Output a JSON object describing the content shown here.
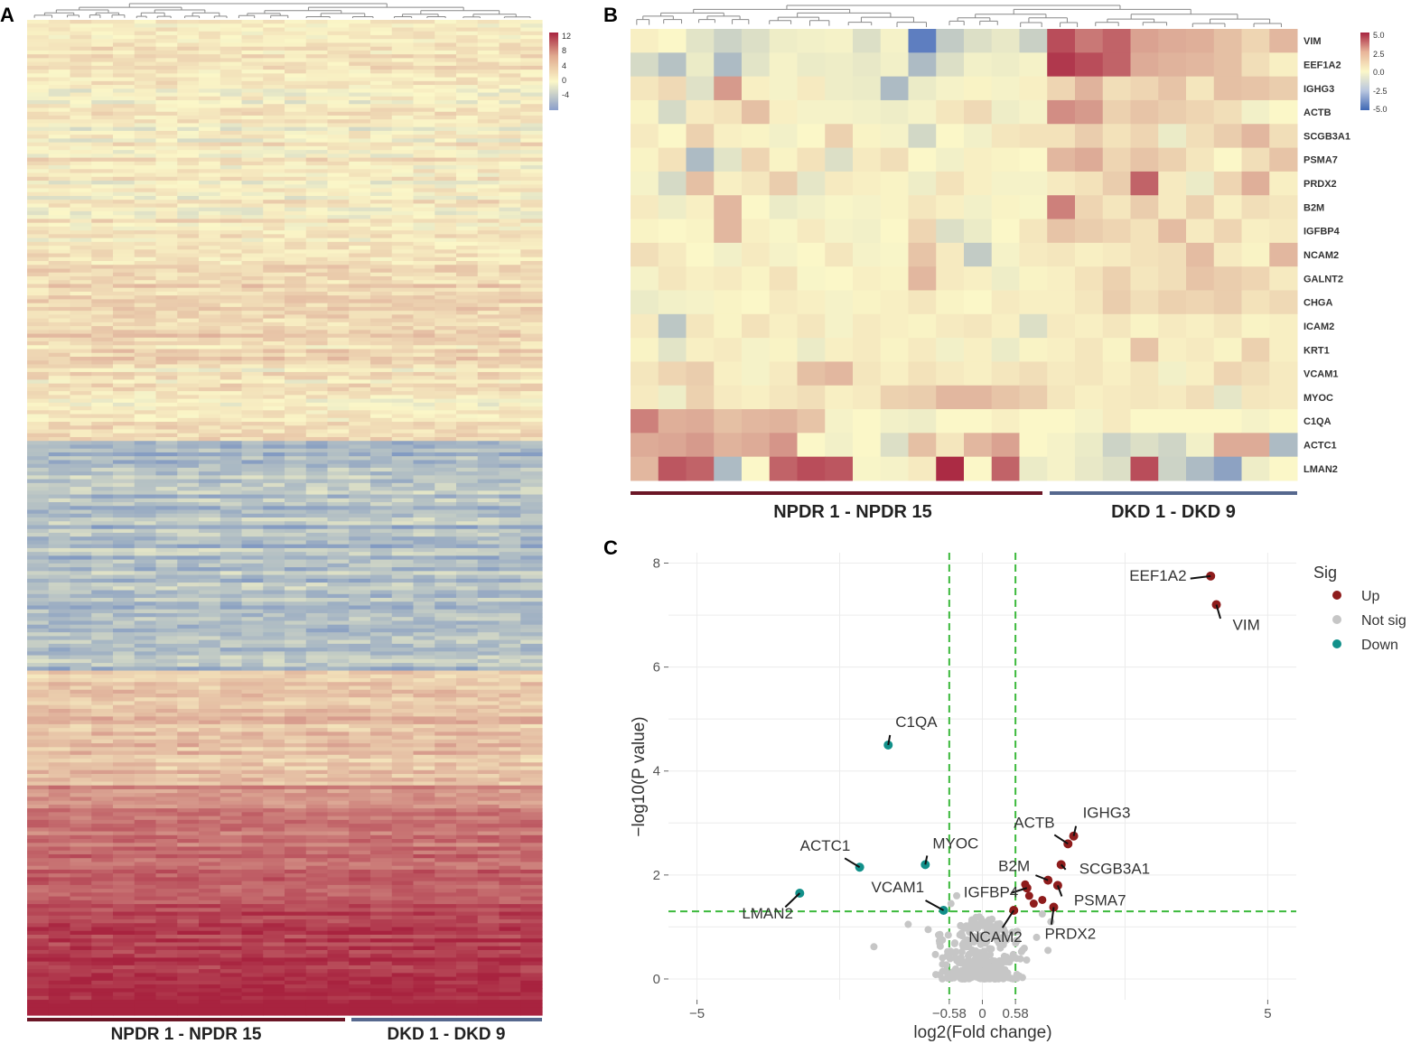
{
  "colors": {
    "heat_high": "#a8233f",
    "heat_mid": "#fbf7c8",
    "heat_low": "#5e7ec0",
    "npdr_bar": "#6b1626",
    "dkd_bar": "#56688e",
    "up": "#8e1c1c",
    "down": "#12908a",
    "notsig": "#c6c6c6",
    "threshold": "#3cb93c",
    "grid": "#ececec",
    "axis_text": "#555555"
  },
  "chart_data": [
    {
      "panel": "A",
      "type": "heatmap",
      "panel_label": "A",
      "n_columns": 24,
      "colorbar": {
        "min": -7,
        "max": 12,
        "ticks": [
          "12",
          "8",
          "4",
          "0",
          "-4"
        ]
      },
      "row_bands": [
        {
          "rows": 30,
          "base": 0.4
        },
        {
          "rows": 30,
          "base": 0.6
        },
        {
          "rows": 30,
          "base": 1.8
        },
        {
          "rows": 20,
          "base": 0.8
        },
        {
          "rows": 60,
          "base": -3.3
        },
        {
          "rows": 30,
          "base": 3.0
        },
        {
          "rows": 30,
          "base": 6.0
        },
        {
          "rows": 30,
          "base": 9.5
        }
      ],
      "groups": [
        {
          "label": "NPDR 1 - NPDR 15",
          "columns": 15,
          "color_key": "npdr_bar"
        },
        {
          "label": "DKD 1 - DKD 9",
          "columns": 9,
          "color_key": "dkd_bar"
        }
      ]
    },
    {
      "panel": "B",
      "type": "heatmap",
      "panel_label": "B",
      "colorbar": {
        "min": -5,
        "max": 5,
        "ticks": [
          "5.0",
          "2.5",
          "0.0",
          "-2.5",
          "-5.0"
        ]
      },
      "rows": [
        "VIM",
        "EEF1A2",
        "IGHG3",
        "ACTB",
        "SCGB3A1",
        "PSMA7",
        "PRDX2",
        "B2M",
        "IGFBP4",
        "NCAM2",
        "GALNT2",
        "CHGA",
        "ICAM2",
        "KRT1",
        "VCAM1",
        "MYOC",
        "C1QA",
        "ACTC1",
        "LMAN2"
      ],
      "values": [
        [
          0.2,
          0.0,
          -0.8,
          -1.5,
          -1.0,
          -0.4,
          -0.3,
          -0.2,
          -1.0,
          -0.2,
          -5.0,
          -1.8,
          -1.0,
          -0.6,
          -1.6,
          4.0,
          3.0,
          3.5,
          2.0,
          1.8,
          1.7,
          1.3,
          0.8,
          1.5
        ],
        [
          -1.2,
          -2.2,
          -0.5,
          -2.5,
          -0.8,
          -0.2,
          -0.5,
          -0.4,
          -0.6,
          -0.3,
          -2.5,
          -1.0,
          -0.3,
          -0.4,
          -0.2,
          4.5,
          4.0,
          3.5,
          1.8,
          1.6,
          1.5,
          1.3,
          0.6,
          0.2
        ],
        [
          0.4,
          0.7,
          -0.9,
          2.2,
          0.2,
          -0.2,
          0.3,
          -0.4,
          -0.5,
          -2.5,
          -0.5,
          -0.2,
          0.1,
          -0.2,
          0.2,
          0.8,
          1.6,
          0.6,
          0.8,
          1.2,
          0.4,
          1.3,
          1.2,
          1.0
        ],
        [
          0.1,
          -1.2,
          0.3,
          0.5,
          1.3,
          0.2,
          -0.2,
          -0.2,
          -0.3,
          -0.4,
          -0.2,
          0.4,
          0.7,
          -0.4,
          -0.2,
          2.5,
          2.2,
          0.9,
          1.2,
          1.0,
          0.8,
          0.6,
          -0.3,
          0.0
        ],
        [
          0.3,
          0.0,
          0.9,
          0.2,
          0.1,
          -0.3,
          0.0,
          0.9,
          0.1,
          -0.2,
          -1.3,
          0.0,
          -0.3,
          0.4,
          0.5,
          0.5,
          1.0,
          0.5,
          0.8,
          -0.5,
          0.6,
          1.0,
          1.5,
          0.6
        ],
        [
          0.1,
          0.5,
          -2.5,
          -0.8,
          0.8,
          0.1,
          0.5,
          -1.0,
          0.3,
          0.6,
          0.0,
          -0.3,
          0.2,
          0.1,
          0.0,
          1.5,
          1.8,
          0.8,
          1.2,
          0.9,
          0.4,
          0.0,
          0.6,
          1.2
        ],
        [
          -0.2,
          -1.2,
          1.3,
          0.2,
          0.4,
          1.0,
          -0.7,
          0.3,
          0.2,
          0.1,
          -0.4,
          0.5,
          0.2,
          -0.2,
          -0.2,
          0.3,
          0.5,
          1.0,
          3.5,
          0.3,
          -0.5,
          0.8,
          1.7,
          0.2
        ],
        [
          0.3,
          -0.4,
          0.2,
          1.5,
          0.0,
          -0.5,
          -0.3,
          -0.1,
          -0.2,
          0.1,
          0.4,
          0.2,
          -0.3,
          0.1,
          -0.1,
          2.8,
          0.8,
          0.4,
          1.0,
          0.3,
          0.9,
          0.2,
          0.6,
          0.4
        ],
        [
          0.1,
          0.0,
          0.1,
          1.5,
          0.2,
          -0.1,
          0.3,
          -0.2,
          -0.3,
          0.0,
          0.8,
          -1.0,
          -0.5,
          0.0,
          0.4,
          1.2,
          1.0,
          0.8,
          0.5,
          1.4,
          0.3,
          0.8,
          0.2,
          0.3
        ],
        [
          0.6,
          0.3,
          0.0,
          -0.3,
          0.3,
          -0.2,
          0.0,
          0.4,
          -0.2,
          -0.1,
          1.2,
          0.3,
          -1.8,
          -0.2,
          0.3,
          0.4,
          0.2,
          0.3,
          0.5,
          0.6,
          1.4,
          0.3,
          0.1,
          1.5
        ],
        [
          -0.2,
          0.4,
          0.2,
          0.3,
          0.1,
          0.5,
          -0.1,
          0.0,
          0.2,
          0.1,
          1.5,
          0.3,
          0.2,
          -0.4,
          0.1,
          0.2,
          0.5,
          0.9,
          0.4,
          0.6,
          1.2,
          1.0,
          0.8,
          0.3
        ],
        [
          -0.5,
          -0.3,
          -0.2,
          0.1,
          0.0,
          0.3,
          0.2,
          -0.2,
          0.1,
          0.2,
          0.4,
          0.1,
          0.0,
          0.3,
          0.2,
          0.2,
          0.4,
          1.0,
          0.6,
          0.9,
          0.8,
          1.0,
          0.5,
          0.7
        ],
        [
          0.3,
          -2.0,
          0.4,
          0.1,
          0.5,
          0.2,
          0.4,
          -0.2,
          0.3,
          0.2,
          0.1,
          0.3,
          0.4,
          0.2,
          -1.0,
          0.3,
          0.2,
          0.4,
          0.1,
          0.3,
          0.2,
          0.4,
          0.1,
          0.2
        ],
        [
          0.1,
          -0.8,
          0.2,
          0.3,
          -0.2,
          0.1,
          -0.5,
          0.2,
          0.3,
          0.1,
          0.3,
          -0.3,
          0.2,
          -0.5,
          0.1,
          0.2,
          0.4,
          0.1,
          1.2,
          0.2,
          0.3,
          0.1,
          0.9,
          0.2
        ],
        [
          0.4,
          0.8,
          1.0,
          0.2,
          -0.2,
          0.3,
          1.3,
          1.5,
          0.4,
          0.2,
          0.5,
          0.3,
          0.2,
          0.4,
          0.6,
          0.3,
          0.4,
          0.2,
          0.4,
          -0.3,
          0.2,
          0.8,
          0.6,
          0.3
        ],
        [
          0.3,
          -0.4,
          0.9,
          0.3,
          0.2,
          0.4,
          0.6,
          0.2,
          0.3,
          0.9,
          1.0,
          1.5,
          1.5,
          1.2,
          1.0,
          0.4,
          0.2,
          0.3,
          0.4,
          0.3,
          0.6,
          -0.7,
          0.4,
          0.3
        ],
        [
          2.8,
          1.7,
          1.8,
          1.3,
          1.5,
          1.6,
          1.2,
          -0.2,
          0.0,
          -0.3,
          -0.4,
          0.0,
          0.0,
          0.2,
          0.0,
          0.0,
          -0.2,
          0.3,
          0.0,
          0.0,
          0.0,
          0.0,
          -0.2,
          0.0
        ],
        [
          1.8,
          1.9,
          2.2,
          1.6,
          1.8,
          2.3,
          0.0,
          -0.3,
          0.0,
          -1.0,
          1.3,
          0.4,
          1.5,
          2.0,
          0.0,
          -0.2,
          -0.5,
          -1.5,
          -1.0,
          -1.4,
          -0.3,
          1.8,
          1.8,
          -2.5
        ],
        [
          1.5,
          3.8,
          3.5,
          -2.5,
          0.0,
          3.5,
          4.0,
          3.8,
          -0.1,
          -0.2,
          0.3,
          4.8,
          0.0,
          3.5,
          -0.5,
          -0.2,
          -0.6,
          -1.0,
          4.0,
          -1.5,
          -2.5,
          -3.5,
          -0.4,
          0.0
        ]
      ],
      "groups": [
        {
          "label": "NPDR 1 - NPDR 15",
          "columns": 15,
          "color_key": "npdr_bar"
        },
        {
          "label": "DKD 1 - DKD 9",
          "columns": 9,
          "color_key": "dkd_bar"
        }
      ]
    },
    {
      "panel": "C",
      "type": "scatter",
      "panel_label": "C",
      "xlabel": "log2(Fold change)",
      "ylabel": "−log10(P value)",
      "xlim": [
        -5.5,
        5.5
      ],
      "ylim": [
        -0.4,
        8.2
      ],
      "xticks": [
        {
          "value": -5,
          "label": "−5"
        },
        {
          "value": -0.58,
          "label": "−0.58"
        },
        {
          "value": 0,
          "label": "0"
        },
        {
          "value": 0.58,
          "label": "0.58"
        },
        {
          "value": 5,
          "label": "5"
        }
      ],
      "yticks": [
        {
          "value": 0,
          "label": "0"
        },
        {
          "value": 2,
          "label": "2"
        },
        {
          "value": 4,
          "label": "4"
        },
        {
          "value": 6,
          "label": "6"
        },
        {
          "value": 8,
          "label": "8"
        }
      ],
      "thresholds": {
        "x": [
          -0.58,
          0.58
        ],
        "y": 1.3
      },
      "legend": {
        "title": "Sig",
        "position": "right",
        "entries": [
          {
            "label": "Up",
            "color_key": "up"
          },
          {
            "label": "Not sig",
            "color_key": "notsig"
          },
          {
            "label": "Down",
            "color_key": "down"
          }
        ]
      },
      "labeled_points": [
        {
          "gene": "EEF1A2",
          "x": 4.0,
          "y": 7.75,
          "sig": "Up"
        },
        {
          "gene": "VIM",
          "x": 4.1,
          "y": 7.2,
          "sig": "Up"
        },
        {
          "gene": "IGHG3",
          "x": 1.6,
          "y": 2.75,
          "sig": "Up"
        },
        {
          "gene": "ACTB",
          "x": 1.5,
          "y": 2.6,
          "sig": "Up"
        },
        {
          "gene": "SCGB3A1",
          "x": 1.38,
          "y": 2.2,
          "sig": "Up"
        },
        {
          "gene": "B2M",
          "x": 1.15,
          "y": 1.9,
          "sig": "Up"
        },
        {
          "gene": "PSMA7",
          "x": 1.32,
          "y": 1.8,
          "sig": "Up"
        },
        {
          "gene": "IGFBP4",
          "x": 0.78,
          "y": 1.75,
          "sig": "Up"
        },
        {
          "gene": "PRDX2",
          "x": 1.25,
          "y": 1.38,
          "sig": "Up"
        },
        {
          "gene": "NCAM2",
          "x": 0.55,
          "y": 1.32,
          "sig": "Up"
        },
        {
          "gene": "C1QA",
          "x": -1.65,
          "y": 4.5,
          "sig": "Down"
        },
        {
          "gene": "MYOC",
          "x": -1.0,
          "y": 2.2,
          "sig": "Down"
        },
        {
          "gene": "ACTC1",
          "x": -2.15,
          "y": 2.15,
          "sig": "Down"
        },
        {
          "gene": "LMAN2",
          "x": -3.2,
          "y": 1.65,
          "sig": "Down"
        },
        {
          "gene": "VCAM1",
          "x": -0.68,
          "y": 1.32,
          "sig": "Down"
        }
      ],
      "extra_up_points": [
        {
          "x": 0.82,
          "y": 1.6
        },
        {
          "x": 1.05,
          "y": 1.52
        },
        {
          "x": 0.9,
          "y": 1.45
        },
        {
          "x": 0.75,
          "y": 1.82
        }
      ],
      "not_sig_points": {
        "count": 300,
        "spread_x": 0.85,
        "max_y": 1.28,
        "extra": [
          {
            "x": -1.9,
            "y": 0.62
          },
          {
            "x": -1.3,
            "y": 1.05
          },
          {
            "x": -0.95,
            "y": 0.95
          },
          {
            "x": -0.55,
            "y": 1.45
          },
          {
            "x": -0.45,
            "y": 1.6
          },
          {
            "x": 0.7,
            "y": 0.55
          },
          {
            "x": 1.15,
            "y": 0.55
          },
          {
            "x": 0.95,
            "y": 0.8
          },
          {
            "x": 1.2,
            "y": 1.1
          },
          {
            "x": 0.4,
            "y": 0.9
          },
          {
            "x": -0.7,
            "y": 0.75
          },
          {
            "x": 1.05,
            "y": 1.25
          }
        ]
      }
    }
  ]
}
